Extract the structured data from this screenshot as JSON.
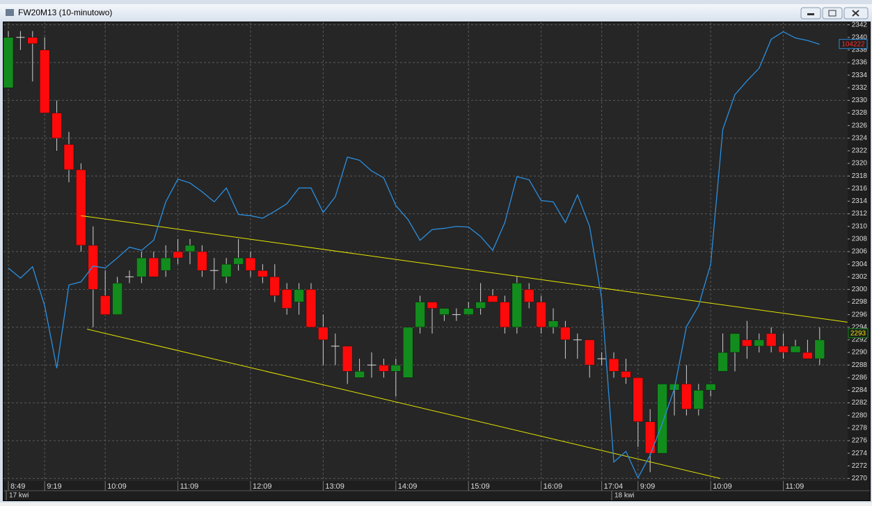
{
  "chart_data": {
    "type": "candlestick",
    "title": "FW20M13 (10-minutowo)",
    "categories": [
      "8:49",
      null,
      null,
      "9:19",
      null,
      null,
      null,
      null,
      "10:09",
      null,
      null,
      null,
      null,
      null,
      "11:09",
      null,
      null,
      null,
      null,
      null,
      "12:09",
      null,
      null,
      null,
      null,
      null,
      "13:09",
      null,
      null,
      null,
      null,
      null,
      "14:09",
      null,
      null,
      null,
      null,
      null,
      "15:09",
      null,
      null,
      null,
      null,
      null,
      "16:09",
      null,
      null,
      null,
      null,
      "17:04",
      null,
      null,
      "9:09",
      null,
      null,
      null,
      null,
      null,
      "10:09",
      null,
      null,
      null,
      null,
      null,
      "11:09",
      null,
      null,
      null
    ],
    "open": [
      2332,
      2340,
      2340,
      2338,
      2328,
      2323,
      2319,
      2307,
      2299,
      2296,
      2302,
      2302,
      2305,
      2303,
      2306,
      2306,
      2306,
      2303,
      2302,
      2304,
      2305,
      2303,
      2302,
      2300,
      2298,
      2300,
      2294,
      2291,
      2291,
      2286,
      2288,
      2288,
      2287,
      2286,
      2294,
      2298,
      2296,
      2296,
      2296,
      2297,
      2299,
      2298,
      2294,
      2300,
      2298,
      2294,
      2294,
      2292,
      2292,
      2289,
      2289,
      2287,
      2286,
      2279,
      2274,
      2284,
      2285,
      2281,
      2284,
      2287,
      2290,
      2292,
      2291,
      2293,
      2291,
      2290,
      2290,
      2289
    ],
    "high": [
      2341,
      2341,
      2341,
      2340,
      2330,
      2325,
      2320,
      2310,
      2303,
      2302,
      2303,
      2306,
      2306,
      2307,
      2308,
      2308,
      2307,
      2305,
      2305,
      2308,
      2306,
      2304,
      2304,
      2301,
      2301,
      2301,
      2296,
      2293,
      2291,
      2289,
      2290,
      2289,
      2289,
      2294,
      2299,
      2298,
      2297,
      2297,
      2298,
      2301,
      2300,
      2299,
      2302,
      2301,
      2299,
      2297,
      2295,
      2293,
      2292,
      2290,
      2290,
      2289,
      2286,
      2281,
      2285,
      2285,
      2288,
      2285,
      2285,
      2293,
      2293,
      2295,
      2293,
      2294,
      2293,
      2292,
      2292,
      2294
    ],
    "low": [
      2332,
      2338,
      2333,
      2328,
      2322,
      2317,
      2306,
      2294,
      2296,
      2296,
      2301,
      2301,
      2302,
      2302,
      2304,
      2304,
      2302,
      2300,
      2301,
      2303,
      2302,
      2301,
      2298,
      2296,
      2296,
      2294,
      2288,
      2288,
      2285,
      2286,
      2286,
      2286,
      2283,
      2286,
      2293,
      2293,
      2295,
      2295,
      2296,
      2296,
      2298,
      2293,
      2293,
      2297,
      2293,
      2293,
      2289,
      2289,
      2286,
      2288,
      2286,
      2285,
      2275,
      2271,
      2274,
      2280,
      2280,
      2280,
      2283,
      2287,
      2287,
      2289,
      2290,
      2290,
      2289,
      2290,
      2289,
      2288
    ],
    "close": [
      2340,
      2340,
      2339,
      2328,
      2324,
      2319,
      2307,
      2300,
      2296,
      2301,
      2302,
      2305,
      2302,
      2305,
      2305,
      2307,
      2303,
      2303,
      2304,
      2305,
      2303,
      2302,
      2299,
      2297,
      2300,
      2294,
      2292,
      2291,
      2287,
      2287,
      2288,
      2287,
      2288,
      2294,
      2298,
      2297,
      2297,
      2296,
      2297,
      2298,
      2298,
      2294,
      2301,
      2298,
      2294,
      2295,
      2292,
      2292,
      2288,
      2289,
      2287,
      2286,
      2279,
      2274,
      2285,
      2285,
      2281,
      2284,
      2285,
      2290,
      2293,
      2291,
      2292,
      2291,
      2290,
      2291,
      2289,
      2292
    ],
    "up_color": "#128c1c",
    "down_color": "#ff0a0a",
    "line": {
      "color": "#2b8fe0",
      "values": [
        2303.4,
        2301.8,
        2303.6,
        2297.4,
        2287.5,
        2300.7,
        2301.2,
        2303.7,
        2303.4,
        2305,
        2306.7,
        2306.2,
        2307.8,
        2313.9,
        2317.5,
        2316.9,
        2315.5,
        2313.9,
        2316.1,
        2311.9,
        2311.7,
        2311.3,
        2312.4,
        2313.6,
        2316.1,
        2316.1,
        2312.2,
        2314.7,
        2321,
        2320.5,
        2318.8,
        2317.7,
        2313.3,
        2311.1,
        2307.8,
        2309.5,
        2309.7,
        2310,
        2309.9,
        2308.4,
        2306.2,
        2310.6,
        2317.9,
        2317.4,
        2314.1,
        2313.9,
        2310.6,
        2315,
        2310,
        2298.5,
        2272.6,
        2274.3,
        2270.1,
        2273.7,
        2278.7,
        2284.2,
        2294.1,
        2297.4,
        2304,
        2325.4,
        2330.9,
        2333.1,
        2335.1,
        2339.7,
        2340.9,
        2339.9,
        2339.5,
        2338.9
      ],
      "last_label": "104222"
    },
    "last_price": {
      "value": 2293,
      "label": "2293"
    },
    "trend_lines": [
      {
        "color": "#e6e600",
        "points": [
          [
            6,
            2311.7
          ],
          [
            69.3,
            2294.8
          ]
        ]
      },
      {
        "color": "#e6e600",
        "points": [
          [
            6.5,
            2293.7
          ],
          [
            58.8,
            2270
          ]
        ]
      }
    ],
    "dates": [
      {
        "index": 0,
        "label": "17 kwi"
      },
      {
        "index": 50,
        "label": "18 kwi"
      }
    ],
    "ylim": [
      2269.6,
      2342.4
    ],
    "yticks": [
      2270,
      2272,
      2274,
      2276,
      2278,
      2280,
      2282,
      2284,
      2286,
      2288,
      2290,
      2292,
      2294,
      2296,
      2298,
      2300,
      2302,
      2304,
      2306,
      2308,
      2310,
      2312,
      2314,
      2316,
      2318,
      2320,
      2322,
      2324,
      2326,
      2328,
      2330,
      2332,
      2334,
      2336,
      2338,
      2340,
      2342
    ],
    "grid": true
  }
}
